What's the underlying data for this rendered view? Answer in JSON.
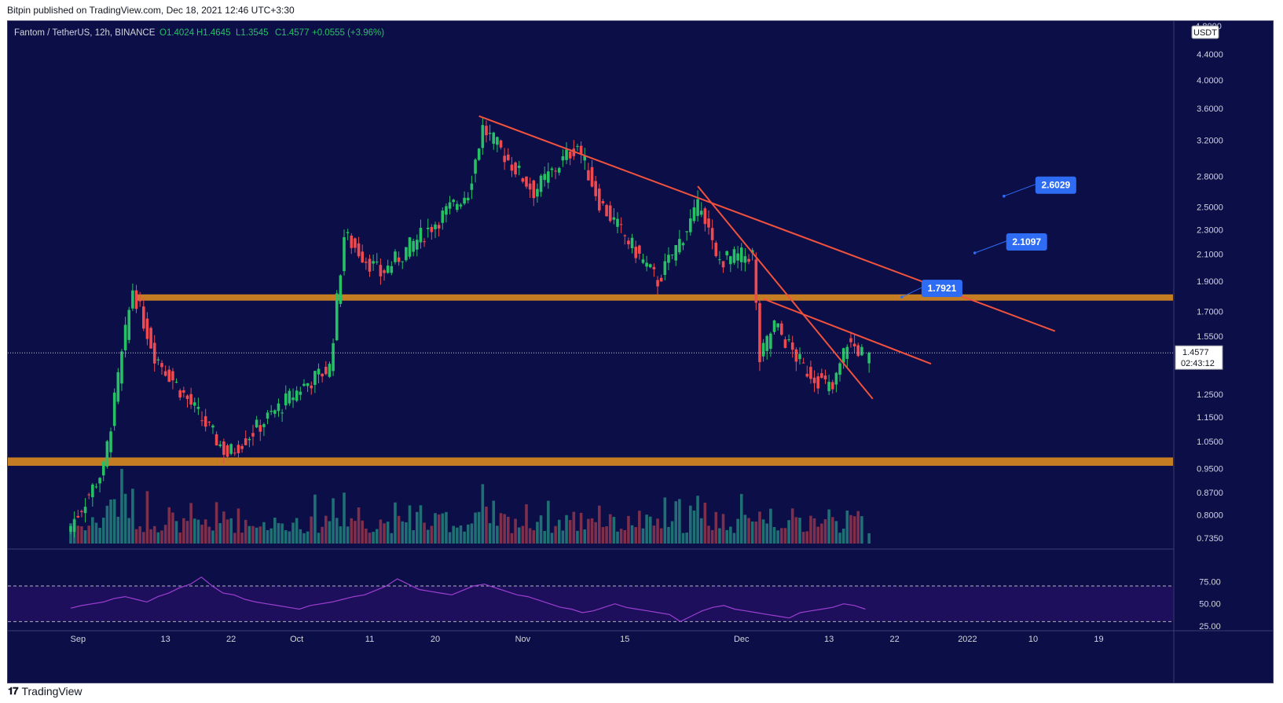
{
  "header": {
    "published": "Bitpin published on TradingView.com, Dec 18, 2021 12:46 UTC+3:30"
  },
  "symbol_line": {
    "name": "Fantom / TetherUS, 12h, BINANCE",
    "o": "O1.4024",
    "h": "H1.4645",
    "l": "L1.3545",
    "c": "C1.4577",
    "chg": "+0.0555 (+3.96%)"
  },
  "price_axis": {
    "currency": "USDT",
    "ticks": [
      "4.4000",
      "4.0000",
      "3.6000",
      "3.2000",
      "2.8000",
      "2.5000",
      "2.3000",
      "2.1000",
      "1.9000",
      "1.7000",
      "1.5500",
      "1.4000",
      "1.2500",
      "1.1500",
      "1.0500",
      "0.9500",
      "0.8700",
      "0.8000",
      "0.7350"
    ],
    "top_partial": "4.8000",
    "last_price": "1.4577",
    "countdown": "02:43:12"
  },
  "rsi_axis": {
    "ticks": [
      "75.00",
      "50.00",
      "25.00"
    ]
  },
  "time_axis": {
    "ticks": [
      "Sep",
      "13",
      "22",
      "Oct",
      "11",
      "20",
      "Nov",
      "15",
      "Dec",
      "13",
      "22",
      "2022",
      "10",
      "19"
    ]
  },
  "annotations": [
    {
      "label": "2.6029"
    },
    {
      "label": "2.1097"
    },
    {
      "label": "1.7921"
    }
  ],
  "footer": {
    "brand": "TradingView"
  },
  "colors": {
    "background": "#0c0e47",
    "up": "#26c165",
    "down": "#ef4a4f",
    "trendline": "#f0523d",
    "zone": "#c47d23",
    "label": "#2d6cf3",
    "rsi": "#9c3fd0"
  },
  "chart_data": {
    "type": "candlestick",
    "title": "Fantom / TetherUS, 12h, BINANCE",
    "y_scale": "log",
    "ylim": [
      0.72,
      4.9
    ],
    "last": {
      "open": 1.4024,
      "high": 1.4645,
      "low": 1.3545,
      "close": 1.4577
    },
    "segments": [
      {
        "date": "Aug 31",
        "price": 0.75
      },
      {
        "date": "Sep 5",
        "price": 0.95
      },
      {
        "date": "Sep 9",
        "price": 1.85
      },
      {
        "date": "Sep 12",
        "price": 1.45
      },
      {
        "date": "Sep 22",
        "price": 1.0
      },
      {
        "date": "Oct 2",
        "price": 1.28
      },
      {
        "date": "Oct 6",
        "price": 1.38
      },
      {
        "date": "Oct 8",
        "price": 2.25
      },
      {
        "date": "Oct 13",
        "price": 1.95
      },
      {
        "date": "Oct 25",
        "price": 2.65
      },
      {
        "date": "Oct 27",
        "price": 3.35
      },
      {
        "date": "Nov 3",
        "price": 2.65
      },
      {
        "date": "Nov 9",
        "price": 3.15
      },
      {
        "date": "Nov 12",
        "price": 2.55
      },
      {
        "date": "Nov 20",
        "price": 1.9
      },
      {
        "date": "Nov 26",
        "price": 2.55
      },
      {
        "date": "Nov 28",
        "price": 2.05
      },
      {
        "date": "Dec 3",
        "price": 2.1
      },
      {
        "date": "Dec 4",
        "price": 1.42
      },
      {
        "date": "Dec 6",
        "price": 1.62
      },
      {
        "date": "Dec 10",
        "price": 1.38
      },
      {
        "date": "Dec 14",
        "price": 1.27
      },
      {
        "date": "Dec 16",
        "price": 1.52
      },
      {
        "date": "Dec 18",
        "price": 1.4577
      }
    ],
    "zones": [
      {
        "from": 1.77,
        "to": 1.81
      },
      {
        "from": 0.96,
        "to": 0.99
      }
    ],
    "trendlines": [
      {
        "from": {
          "date": "Oct 26",
          "price": 3.5
        },
        "to": {
          "date": "Jan 13",
          "price": 1.58
        }
      },
      {
        "from": {
          "date": "Nov 25",
          "price": 2.7
        },
        "to": {
          "date": "Dec 19",
          "price": 1.23
        }
      },
      {
        "from": {
          "date": "Dec 4",
          "price": 1.78
        },
        "to": {
          "date": "Dec 27",
          "price": 1.4
        }
      }
    ],
    "target_points": [
      {
        "date": "Jan 6",
        "price": 2.6029
      },
      {
        "date": "Jan 2",
        "price": 2.1097
      },
      {
        "date": "Dec 23",
        "price": 1.7921
      }
    ],
    "rsi": {
      "levels": [
        70,
        30
      ],
      "ylim": [
        25,
        100
      ],
      "values": [
        45,
        48,
        50,
        52,
        56,
        58,
        55,
        52,
        58,
        62,
        68,
        72,
        80,
        70,
        62,
        60,
        55,
        52,
        50,
        48,
        46,
        44,
        48,
        50,
        52,
        55,
        58,
        60,
        65,
        70,
        78,
        72,
        66,
        64,
        62,
        60,
        65,
        70,
        72,
        68,
        64,
        60,
        58,
        54,
        50,
        46,
        44,
        40,
        42,
        46,
        50,
        46,
        44,
        42,
        40,
        38,
        30,
        36,
        42,
        46,
        48,
        44,
        42,
        40,
        38,
        36,
        34,
        40,
        42,
        44,
        46,
        50,
        48,
        44
      ]
    }
  }
}
